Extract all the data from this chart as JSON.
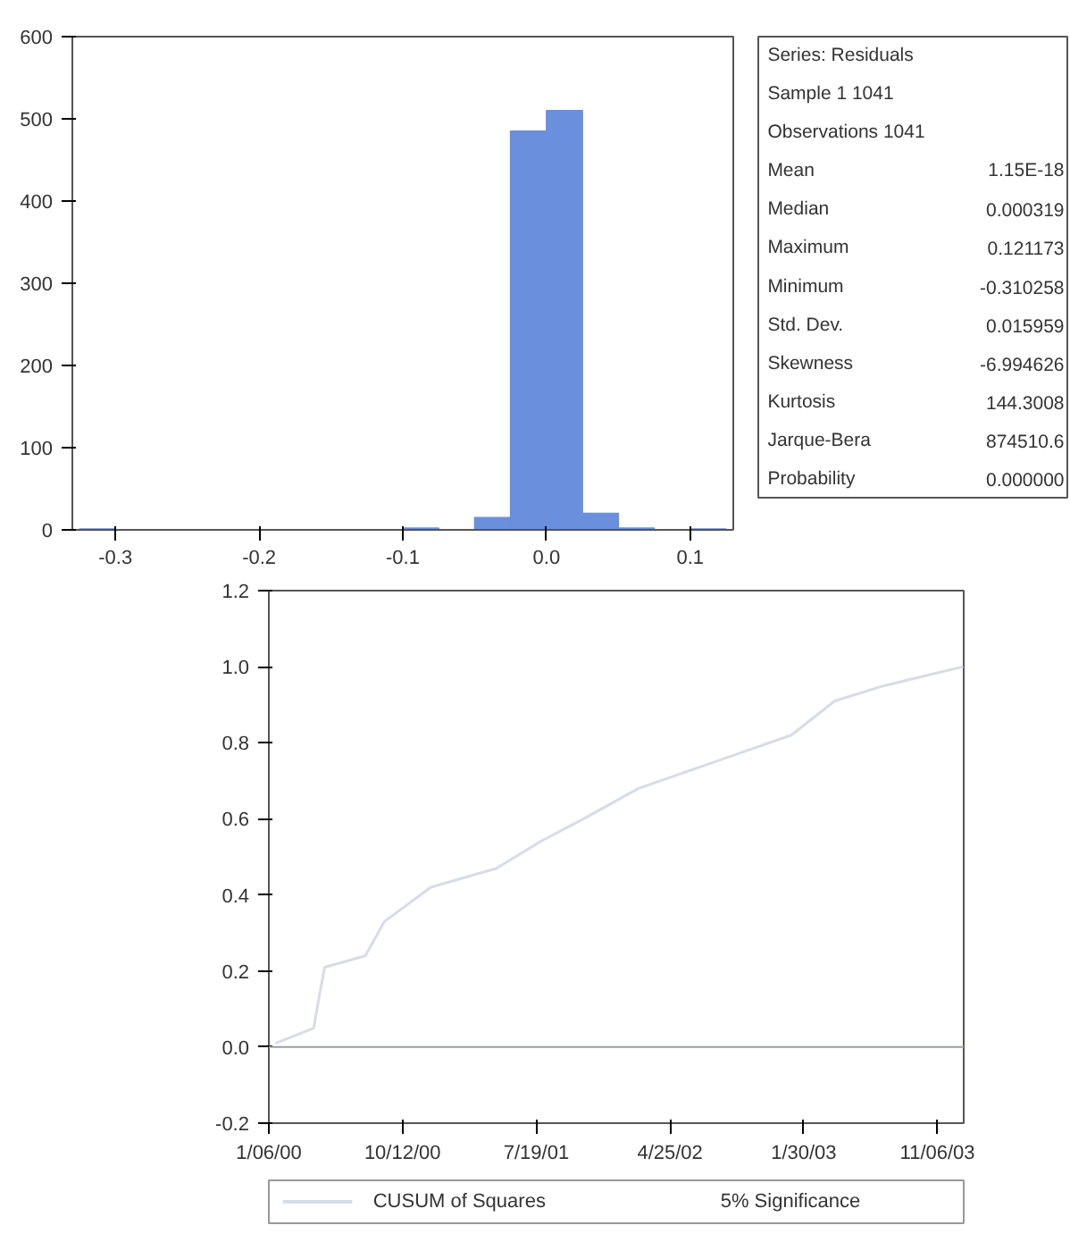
{
  "chart_data": [
    {
      "type": "histogram",
      "bins": [
        -0.325,
        -0.3,
        -0.275,
        -0.25,
        -0.225,
        -0.2,
        -0.175,
        -0.15,
        -0.125,
        -0.1,
        -0.075,
        -0.05,
        -0.025,
        0.0,
        0.025,
        0.05,
        0.075,
        0.1,
        0.125
      ],
      "values": [
        1,
        0,
        0,
        0,
        0,
        0,
        0,
        0,
        0,
        2,
        0,
        15,
        485,
        510,
        20,
        2,
        0,
        1
      ],
      "color": "#6a8fdc",
      "xlim": [
        -0.33,
        0.13
      ],
      "xticks": [
        {
          "value": -0.3,
          "label": "-0.3"
        },
        {
          "value": -0.2,
          "label": "-0.2"
        },
        {
          "value": -0.1,
          "label": "-0.1"
        },
        {
          "value": 0.0,
          "label": "0.0"
        },
        {
          "value": 0.1,
          "label": "0.1"
        }
      ],
      "ylim": [
        0,
        600
      ],
      "yticks": [
        0,
        100,
        200,
        300,
        400,
        500,
        600
      ],
      "grid": false
    },
    {
      "type": "other",
      "annotations": [
        "Series: Residuals",
        "Sample 1 1041",
        "Observations 1041",
        "Mean\t1.15E-18",
        "Median\t0.000319",
        "Maximum\t0.121173",
        "Minimum\t-0.310258",
        "Std. Dev.\t0.015959",
        "Skewness\t-6.994626",
        "Kurtosis\t144.3008",
        "Jarque-Bera\t874510.6",
        "Probability\t0.000000"
      ]
    },
    {
      "type": "line",
      "x": [
        "2000-01-20",
        "2000-02-29",
        "2000-04-09",
        "2000-04-20",
        "2000-05-02",
        "2000-07-26",
        "2000-09-04",
        "2000-12-10",
        "2001-04-27",
        "2001-07-27",
        "2001-10-26",
        "2002-02-18",
        "2002-07-05",
        "2002-10-04",
        "2003-01-04",
        "2003-04-05",
        "2003-07-17",
        "2003-12-30"
      ],
      "series": [
        {
          "name": "CUSUM of Squares",
          "color": "#d8dbe8",
          "values": [
            0.01,
            0.03,
            0.05,
            0.13,
            0.21,
            0.24,
            0.33,
            0.42,
            0.47,
            0.54,
            0.6,
            0.68,
            0.74,
            0.78,
            0.82,
            0.91,
            0.95,
            1.0
          ]
        }
      ],
      "xlim": [
        "2000-01-06",
        "2003-12-31"
      ],
      "xticks": [
        {
          "value": "2000-01-06",
          "label": "1/06/00"
        },
        {
          "value": "2000-10-12",
          "label": "10/12/00"
        },
        {
          "value": "2001-07-19",
          "label": "7/19/01"
        },
        {
          "value": "2002-04-25",
          "label": "4/25/02"
        },
        {
          "value": "2003-01-30",
          "label": "1/30/03"
        },
        {
          "value": "2003-11-06",
          "label": "11/06/03"
        }
      ],
      "ylim": [
        -0.2,
        1.2
      ],
      "yticks": [
        {
          "value": -0.2,
          "label": "-0.2"
        },
        {
          "value": 0.0,
          "label": "0.0"
        },
        {
          "value": 0.2,
          "label": "0.2"
        },
        {
          "value": 0.4,
          "label": "0.4"
        },
        {
          "value": 0.6,
          "label": "0.6"
        },
        {
          "value": 0.8,
          "label": "0.8"
        },
        {
          "value": 1.0,
          "label": "1.0"
        },
        {
          "value": 1.2,
          "label": "1.2"
        }
      ],
      "ref_lines": [
        {
          "axis": "y",
          "value": 0.0,
          "color": "#9aa0aa"
        }
      ],
      "annotations": [
        "5% Significance"
      ],
      "legend": "bottom",
      "grid": false
    }
  ]
}
